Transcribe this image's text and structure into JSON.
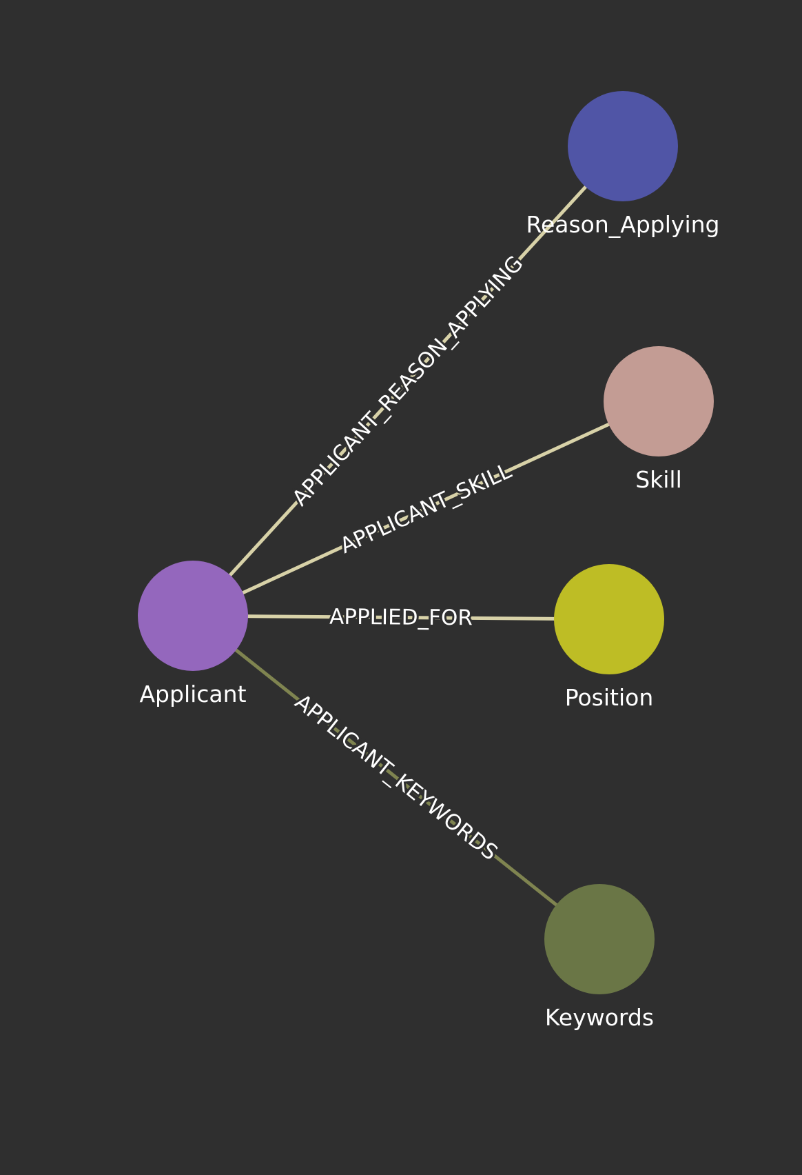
{
  "colors": {
    "background": "#2f2f2f",
    "edge": "#d8d2a8",
    "edge_muted": "#7f8450",
    "label_text": "#ffffff"
  },
  "nodes": [
    {
      "id": "applicant",
      "label": "Applicant",
      "color": "#9467bd"
    },
    {
      "id": "reason_applying",
      "label": "Reason_Applying",
      "color": "#5055a6"
    },
    {
      "id": "skill",
      "label": "Skill",
      "color": "#c39c94"
    },
    {
      "id": "position",
      "label": "Position",
      "color": "#bebd25"
    },
    {
      "id": "keywords",
      "label": "Keywords",
      "color": "#6a7646"
    }
  ],
  "edges": [
    {
      "id": "applicant-reason",
      "source": "applicant",
      "target": "reason_applying",
      "label": "APPLICANT_REASON_APPLYING"
    },
    {
      "id": "applicant-skill",
      "source": "applicant",
      "target": "skill",
      "label": "APPLICANT_SKILL"
    },
    {
      "id": "applicant-position",
      "source": "applicant",
      "target": "position",
      "label": "APPLIED_FOR"
    },
    {
      "id": "applicant-keywords",
      "source": "applicant",
      "target": "keywords",
      "label": "APPLICANT_KEYWORDS",
      "muted": true
    }
  ]
}
